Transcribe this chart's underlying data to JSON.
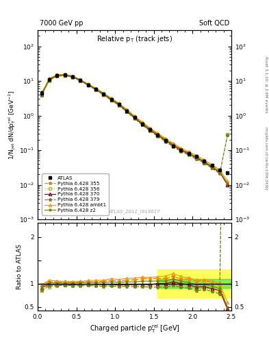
{
  "title_left": "7000 GeV pp",
  "title_right": "Soft QCD",
  "plot_title": "Relative p$_{\\rm T}$ (track jets)",
  "xlabel": "Charged particle p$_{\\rm T}^{\\rm rel}$ [GeV]",
  "ylabel_main": "1/N$_{\\rm jet}$ dN/dp$_{\\rm T}^{\\rm rel}$ [GeV$^{-1}$]",
  "ylabel_ratio": "Ratio to ATLAS",
  "watermark": "ATLAS_2011_I919017",
  "right_label1": "Rivet 3.1.10; ≥ 2.6M events",
  "right_label2": "mcplots.cern.ch [arXiv:1306.3436]",
  "atlas_x": [
    0.05,
    0.15,
    0.25,
    0.35,
    0.45,
    0.55,
    0.65,
    0.75,
    0.85,
    0.95,
    1.05,
    1.15,
    1.25,
    1.35,
    1.45,
    1.55,
    1.65,
    1.75,
    1.85,
    1.95,
    2.05,
    2.15,
    2.25,
    2.35,
    2.45
  ],
  "atlas_y": [
    4.5,
    11.0,
    14.5,
    14.8,
    13.5,
    10.5,
    7.8,
    5.8,
    4.2,
    2.9,
    2.1,
    1.35,
    0.88,
    0.57,
    0.39,
    0.27,
    0.19,
    0.13,
    0.1,
    0.08,
    0.065,
    0.048,
    0.036,
    0.027,
    0.022
  ],
  "atlas_yerr": [
    0.5,
    0.9,
    1.1,
    1.1,
    1.0,
    0.8,
    0.6,
    0.4,
    0.3,
    0.2,
    0.15,
    0.1,
    0.07,
    0.05,
    0.03,
    0.02,
    0.015,
    0.01,
    0.008,
    0.006,
    0.005,
    0.004,
    0.003,
    0.002,
    0.002
  ],
  "p355_y": [
    4.3,
    11.5,
    15.0,
    15.2,
    13.8,
    10.8,
    8.1,
    6.0,
    4.4,
    3.1,
    2.2,
    1.45,
    0.95,
    0.63,
    0.43,
    0.3,
    0.21,
    0.15,
    0.11,
    0.088,
    0.068,
    0.051,
    0.037,
    0.026,
    0.01
  ],
  "p356_y": [
    3.8,
    10.2,
    13.8,
    14.2,
    13.0,
    10.1,
    7.6,
    5.6,
    4.0,
    2.8,
    2.0,
    1.3,
    0.84,
    0.54,
    0.37,
    0.26,
    0.18,
    0.13,
    0.095,
    0.075,
    0.058,
    0.043,
    0.031,
    0.022,
    0.28
  ],
  "p370_y": [
    4.1,
    10.8,
    14.2,
    14.5,
    13.2,
    10.3,
    7.7,
    5.7,
    4.1,
    2.85,
    2.03,
    1.32,
    0.86,
    0.56,
    0.38,
    0.27,
    0.19,
    0.135,
    0.1,
    0.078,
    0.06,
    0.045,
    0.032,
    0.023,
    0.01
  ],
  "p379_y": [
    3.9,
    10.5,
    13.9,
    14.2,
    12.9,
    10.0,
    7.5,
    5.5,
    3.95,
    2.75,
    1.96,
    1.27,
    0.82,
    0.53,
    0.36,
    0.25,
    0.175,
    0.125,
    0.092,
    0.072,
    0.055,
    0.042,
    0.03,
    0.021,
    0.27
  ],
  "pambt1_y": [
    4.4,
    11.8,
    15.3,
    15.5,
    14.1,
    11.0,
    8.3,
    6.2,
    4.5,
    3.2,
    2.28,
    1.5,
    0.98,
    0.65,
    0.44,
    0.31,
    0.22,
    0.158,
    0.115,
    0.09,
    0.07,
    0.052,
    0.038,
    0.027,
    0.013
  ],
  "pz2_y": [
    4.2,
    11.2,
    14.7,
    15.0,
    13.7,
    10.7,
    8.0,
    5.95,
    4.3,
    3.0,
    2.15,
    1.4,
    0.91,
    0.6,
    0.41,
    0.285,
    0.2,
    0.143,
    0.105,
    0.082,
    0.063,
    0.047,
    0.034,
    0.024,
    0.011
  ],
  "color_atlas": "#000000",
  "color_p355": "#e87820",
  "color_p356": "#a0c020",
  "color_p370": "#900020",
  "color_p379": "#708020",
  "color_pambt1": "#f0a000",
  "color_pz2": "#808000",
  "ylim_main": [
    0.001,
    300
  ],
  "ylim_ratio": [
    0.42,
    2.3
  ],
  "xlim": [
    0.0,
    2.5
  ],
  "band_yellow": 0.3,
  "band_green": 0.1,
  "ratio_band_xmin": 1.55,
  "ratio_band_xmax": 2.5
}
